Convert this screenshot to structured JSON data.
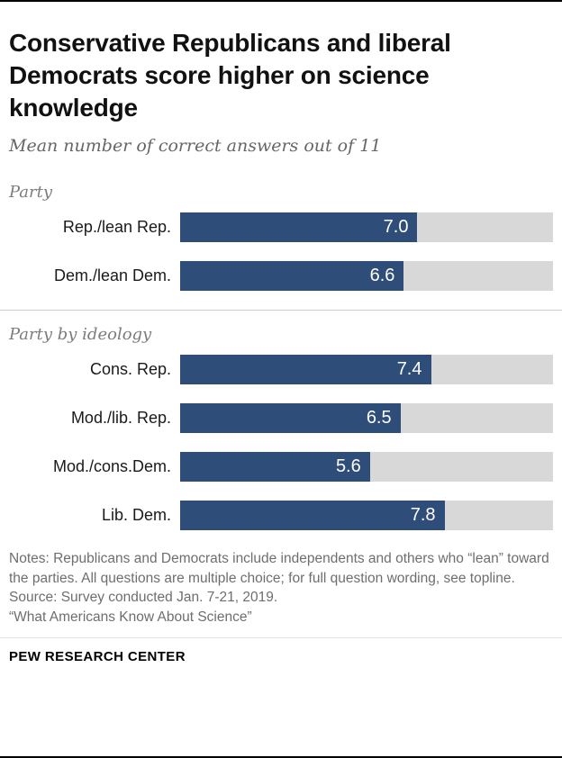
{
  "header": {
    "title": "Conservative Republicans and liberal Democrats score higher on science knowledge",
    "subtitle": "Mean number of correct answers out of 11"
  },
  "chart_data": {
    "type": "bar",
    "orientation": "horizontal",
    "max": 11,
    "bar_color": "#2e4d78",
    "track_color": "#d8d8d8",
    "value_label_color": "#ffffff",
    "groups": [
      {
        "label": "Party",
        "rows": [
          {
            "label": "Rep./lean Rep.",
            "value": 7.0,
            "display": "7.0"
          },
          {
            "label": "Dem./lean Dem.",
            "value": 6.6,
            "display": "6.6"
          }
        ]
      },
      {
        "label": "Party by ideology",
        "rows": [
          {
            "label": "Cons. Rep.",
            "value": 7.4,
            "display": "7.4"
          },
          {
            "label": "Mod./lib. Rep.",
            "value": 6.5,
            "display": "6.5"
          },
          {
            "label": "Mod./cons.Dem.",
            "value": 5.6,
            "display": "5.6"
          },
          {
            "label": "Lib. Dem.",
            "value": 7.8,
            "display": "7.8"
          }
        ]
      }
    ]
  },
  "notes": {
    "notes_text": "Notes: Republicans and Democrats include independents and others who “lean” toward the parties. All questions are multiple choice; for full question wording, see topline.",
    "source_text": "Source: Survey conducted Jan. 7-21, 2019.",
    "report_title": "“What Americans Know About Science”"
  },
  "footer": {
    "label": "PEW RESEARCH CENTER"
  }
}
